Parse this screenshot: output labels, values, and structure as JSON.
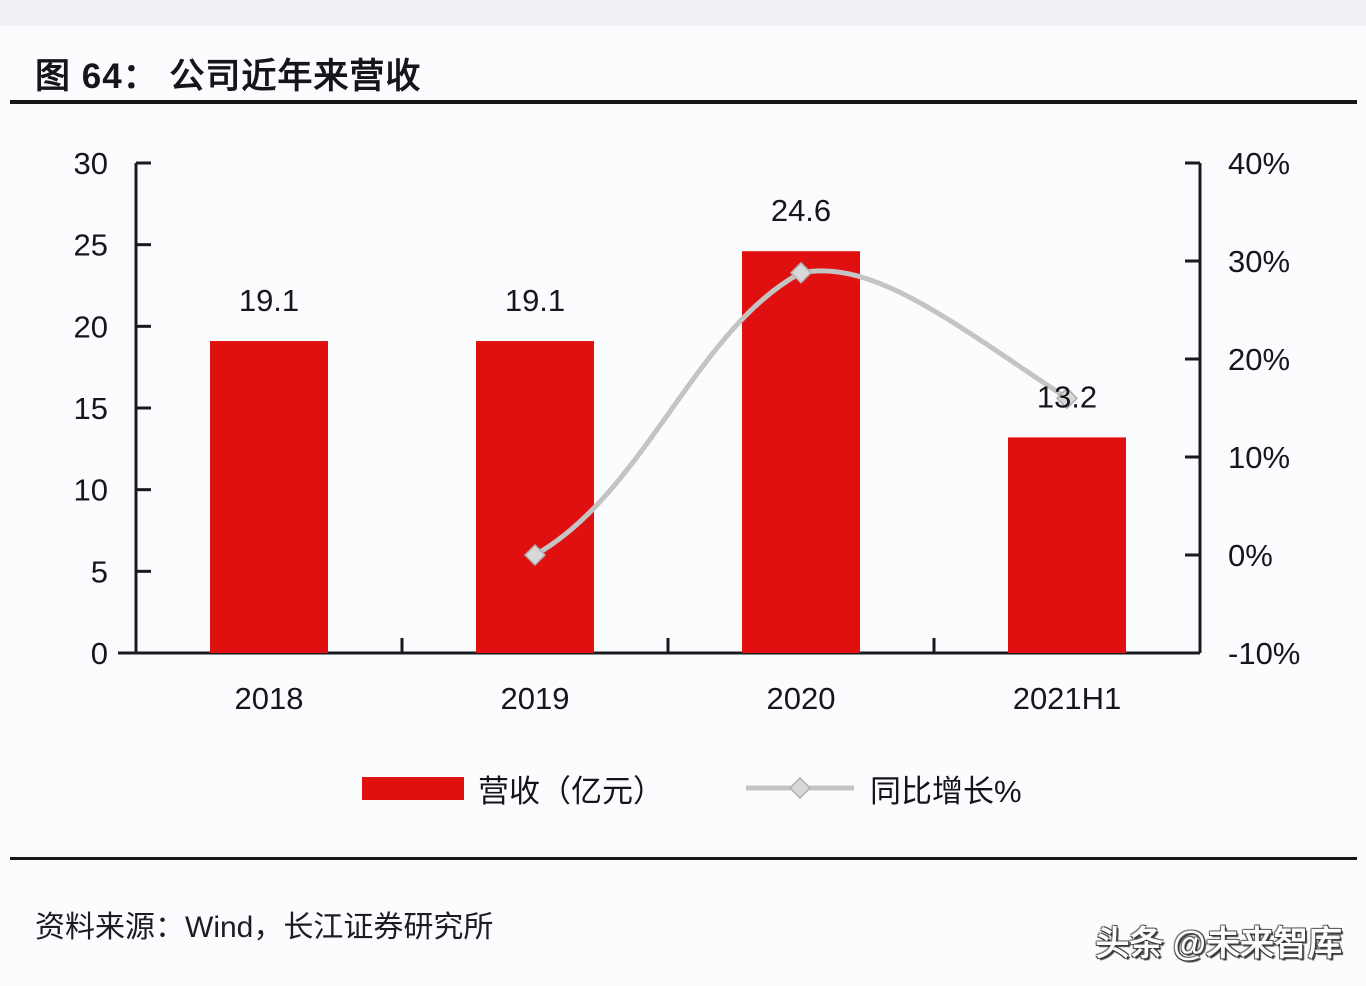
{
  "page": {
    "title": "图 64： 公司近年来营收",
    "source": "资料来源：Wind，长江证券研究所",
    "watermark": "头条 @未来智库"
  },
  "colors": {
    "bar_red": "#e01010",
    "line_gray": "#c4c4c4",
    "marker_fill": "#d8d8d8",
    "marker_stroke": "#aeaeae",
    "axis": "#1a1a1e",
    "text": "#16161d"
  },
  "legend": {
    "items": [
      {
        "label": "营收（亿元）",
        "swatch": "bar"
      },
      {
        "label": "同比增长%",
        "swatch": "line"
      }
    ]
  },
  "chart_data": {
    "type": "bar",
    "subtype": "bar+line combo, dual axis",
    "title": "公司近年来营收",
    "categories": [
      "2018",
      "2019",
      "2020",
      "2021H1"
    ],
    "series": [
      {
        "name": "营收（亿元）",
        "type": "bar",
        "axis": "left",
        "values": [
          19.1,
          19.1,
          24.6,
          13.2
        ],
        "data_labels": [
          "19.1",
          "19.1",
          "24.6",
          "13.2"
        ],
        "color": "#e01010"
      },
      {
        "name": "同比增长%",
        "type": "line",
        "axis": "right",
        "values": [
          null,
          0,
          28.8,
          16
        ],
        "color": "#c4c4c4",
        "marker": "diamond",
        "smooth": true
      }
    ],
    "left_axis": {
      "min": 0,
      "max": 30,
      "tick_labels_top_to_bottom": [
        "30",
        "25",
        "20",
        "15",
        "10",
        "5",
        "0"
      ]
    },
    "right_axis": {
      "min": -10,
      "max": 40,
      "tick_labels_top_to_bottom": [
        "40%",
        "30%",
        "20%",
        "10%",
        "0%",
        "-10%"
      ]
    },
    "grid": false,
    "legend_position": "bottom"
  }
}
